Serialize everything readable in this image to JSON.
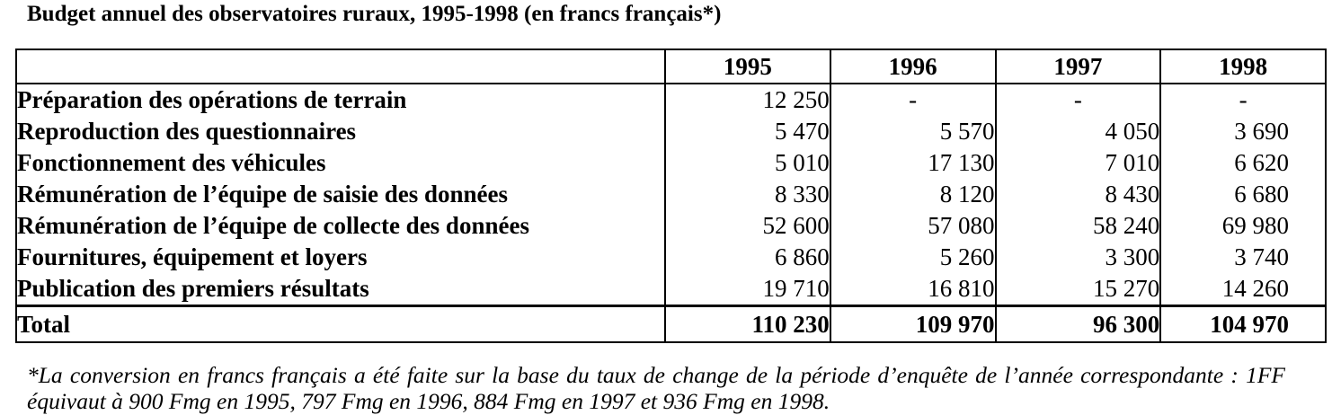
{
  "title": "Budget annuel des observatoires ruraux, 1995-1998 (en francs français*)",
  "table": {
    "years": [
      "1995",
      "1996",
      "1997",
      "1998"
    ],
    "rows": [
      {
        "label": "Préparation des opérations de terrain",
        "values": [
          "12 250",
          "-",
          "-",
          "-"
        ]
      },
      {
        "label": "Reproduction des questionnaires",
        "values": [
          "5 470",
          "5 570",
          "4 050",
          "3 690"
        ]
      },
      {
        "label": "Fonctionnement des véhicules",
        "values": [
          "5 010",
          "17 130",
          "7 010",
          "6 620"
        ]
      },
      {
        "label": "Rémunération de l’équipe de saisie des données",
        "values": [
          "8 330",
          "8 120",
          "8 430",
          "6 680"
        ]
      },
      {
        "label": "Rémunération de l’équipe de collecte des données",
        "values": [
          "52 600",
          "57 080",
          "58 240",
          "69 980"
        ]
      },
      {
        "label": "Fournitures, équipement et loyers",
        "values": [
          "6 860",
          "5 260",
          "3 300",
          "3 740"
        ]
      },
      {
        "label": "Publication des premiers résultats",
        "values": [
          "19 710",
          "16 810",
          "15 270",
          "14 260"
        ]
      }
    ],
    "total": {
      "label": "Total",
      "values": [
        "110 230",
        "109 970",
        "96 300",
        "104 970"
      ]
    }
  },
  "note": "*La conversion en francs français a été faite sur la base du taux de change de la période d’enquête de l’année correspondante : 1FF équivaut à 900 Fmg en 1995, 797 Fmg en 1996, 884 Fmg en 1997 et 936 Fmg en 1998."
}
